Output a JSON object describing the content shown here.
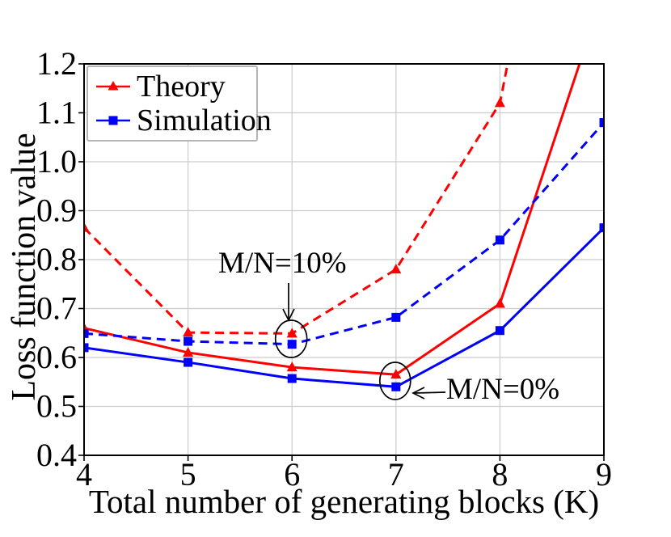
{
  "chart_data": {
    "type": "line",
    "title": "",
    "xlabel": "Total number of generating blocks (K)",
    "ylabel": "Loss function value",
    "xlim": [
      4,
      9
    ],
    "ylim": [
      0.4,
      1.2
    ],
    "grid": true,
    "xticks": {
      "values": [
        4,
        5,
        6,
        7,
        8,
        9
      ],
      "labels": [
        "4",
        "5",
        "6",
        "7",
        "8",
        "9"
      ]
    },
    "yticks": {
      "values": [
        0.4,
        0.5,
        0.6,
        0.7,
        0.8,
        0.9,
        1.0,
        1.1,
        1.2
      ],
      "labels": [
        "0.4",
        "0.5",
        "0.6",
        "0.7",
        "0.8",
        "0.9",
        "1.0",
        "1.1",
        "1.2"
      ]
    },
    "x": [
      4,
      5,
      6,
      7,
      8,
      9
    ],
    "series": [
      {
        "name": "theory-mn0",
        "legend": "Theory",
        "color": "#ff0000",
        "line_style": "solid",
        "marker": "triangle-up",
        "values": [
          0.66,
          0.61,
          0.58,
          0.565,
          0.71,
          1.35
        ]
      },
      {
        "name": "sim-mn0",
        "legend": "Simulation",
        "color": "#0000ff",
        "line_style": "solid",
        "marker": "square",
        "values": [
          0.62,
          0.59,
          0.557,
          0.54,
          0.655,
          0.865
        ]
      },
      {
        "name": "theory-mn10",
        "legend": "Theory",
        "color": "#ff0000",
        "line_style": "dashed",
        "marker": "triangle-up",
        "values": [
          0.865,
          0.651,
          0.649,
          0.78,
          1.12,
          2.2
        ]
      },
      {
        "name": "sim-mn10",
        "legend": "Simulation",
        "color": "#0000ff",
        "line_style": "dashed",
        "marker": "square",
        "values": [
          0.649,
          0.633,
          0.627,
          0.682,
          0.84,
          1.08
        ]
      }
    ],
    "legend": {
      "position": "top-left",
      "entries": [
        {
          "label": "Theory",
          "color": "#ff0000",
          "marker": "triangle-up"
        },
        {
          "label": "Simulation",
          "color": "#0000ff",
          "marker": "square"
        }
      ]
    },
    "annotations": [
      {
        "text": "M/N=10%",
        "points_to_x": 6,
        "points_to": "dashed curves (circled)"
      },
      {
        "text": "M/N=0%",
        "points_to_x": 7,
        "points_to": "solid curves (circled)"
      }
    ]
  },
  "colors": {
    "theory": "#ff0000",
    "simulation": "#0000ff",
    "grid": "#cccccc",
    "axis": "#000000",
    "annotation": "#000000",
    "legend_border": "#b5b5b5",
    "background": "#ffffff"
  }
}
